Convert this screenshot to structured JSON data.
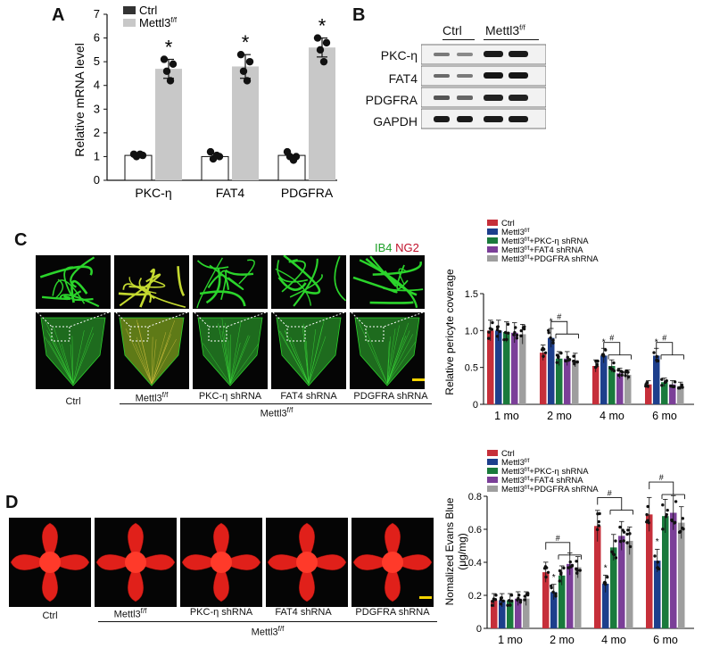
{
  "panels": {
    "A": "A",
    "B": "B",
    "C": "C",
    "D": "D"
  },
  "colors": {
    "ctrl": "#c62f3a",
    "mettl3": "#1d3f8c",
    "pkc": "#1a7a3c",
    "fat4": "#7b3f98",
    "pdgfra": "#9e9e9e",
    "barA_ctrl": "#ffffff",
    "barA_mettl3": "#c8c8c8",
    "vessel": "#2bd42b",
    "evans": "#e0201a"
  },
  "panelA": {
    "ylabel": "Relative mRNA level",
    "legend": [
      {
        "label": "Ctrl",
        "swatch": "#333333"
      },
      {
        "label": "Mettl3",
        "sup": "f/f",
        "swatch": "#c8c8c8"
      }
    ],
    "significance": "*",
    "chart_data": {
      "type": "bar",
      "categories": [
        "PKC-η",
        "FAT4",
        "PDGFRA"
      ],
      "series": [
        {
          "name": "Ctrl",
          "values": [
            1.05,
            1.0,
            1.05
          ],
          "points": [
            [
              1.1,
              1.05,
              1.0,
              1.1
            ],
            [
              1.2,
              1.0,
              0.9,
              1.05
            ],
            [
              1.2,
              1.0,
              1.0,
              0.85
            ]
          ]
        },
        {
          "name": "Mettl3 f/f",
          "values": [
            4.7,
            4.8,
            5.6
          ],
          "points": [
            [
              5.1,
              4.9,
              4.6,
              4.2
            ],
            [
              5.3,
              5.0,
              4.6,
              4.2
            ],
            [
              6.0,
              5.8,
              5.5,
              5.0
            ]
          ],
          "err": [
            0.4,
            0.5,
            0.4
          ]
        }
      ],
      "ylim": [
        0,
        7
      ],
      "yticks": [
        "0",
        "1",
        "2",
        "3",
        "4",
        "5",
        "6",
        "7"
      ]
    }
  },
  "panelB": {
    "groups": [
      {
        "label": "Ctrl"
      },
      {
        "label": "Mettl3",
        "sup": "f/f"
      }
    ],
    "rows": [
      "PKC-η",
      "FAT4",
      "PDGFRA",
      "GAPDH"
    ]
  },
  "panelC": {
    "stain_ib4": "IB4",
    "stain_ng2": "NG2",
    "captions": [
      {
        "label": "Ctrl"
      },
      {
        "label": "Mettl3",
        "sup": "f/f"
      },
      {
        "label": "PKC-η shRNA"
      },
      {
        "label": "FAT4 shRNA"
      },
      {
        "label": "PDGFRA shRNA"
      }
    ],
    "group_label": {
      "label": "Mettl3",
      "sup": "f/f"
    },
    "ylabel": "Relative pericyte coverage",
    "legend": [
      {
        "label": "Ctrl"
      },
      {
        "label": "Mettl3",
        "sup": "f/f"
      },
      {
        "label": "Mettl3",
        "sup": "f/f",
        "suffix": "+PKC-η shRNA"
      },
      {
        "label": "Mettl3",
        "sup": "f/f",
        "suffix": "+FAT4 shRNA"
      },
      {
        "label": "Mettl3",
        "sup": "f/f",
        "suffix": "+PDGFRA shRNA"
      }
    ],
    "marks": {
      "star": "*",
      "hash": "#"
    },
    "chart_data": {
      "type": "bar",
      "categories": [
        "1 mo",
        "2 mo",
        "4 mo",
        "6 mo"
      ],
      "series": [
        {
          "name": "Ctrl",
          "values": [
            1.0,
            0.7,
            0.52,
            0.27
          ]
        },
        {
          "name": "Mettl3 f/f",
          "values": [
            1.0,
            0.9,
            0.66,
            0.66
          ]
        },
        {
          "name": "Mettl3 f/f+PKC-η shRNA",
          "values": [
            0.98,
            0.62,
            0.52,
            0.3
          ]
        },
        {
          "name": "Mettl3 f/f+FAT4 shRNA",
          "values": [
            0.97,
            0.62,
            0.42,
            0.27
          ]
        },
        {
          "name": "Mettl3 f/f+PDGFRA shRNA",
          "values": [
            0.95,
            0.6,
            0.4,
            0.25
          ]
        }
      ],
      "ylim": [
        0,
        1.5
      ],
      "yticks": [
        "0",
        "0.5",
        "1.0",
        "1.5"
      ]
    }
  },
  "panelD": {
    "captions": [
      {
        "label": "Ctrl"
      },
      {
        "label": "Mettl3",
        "sup": "f/f"
      },
      {
        "label": "PKC-η shRNA"
      },
      {
        "label": "FAT4 shRNA"
      },
      {
        "label": "PDGFRA shRNA"
      }
    ],
    "group_label": {
      "label": "Mettl3",
      "sup": "f/f"
    },
    "ylabel": "Nomalized Evans Blue",
    "yunit": "(μg/mg)",
    "legend": [
      {
        "label": "Ctrl"
      },
      {
        "label": "Mettl3",
        "sup": "f/f"
      },
      {
        "label": "Mettl3",
        "sup": "f/f",
        "suffix": "+PKC-η shRNA"
      },
      {
        "label": "Mettl3",
        "sup": "f/f",
        "suffix": "+FAT4 shRNA"
      },
      {
        "label": "Mettl3",
        "sup": "f/f",
        "suffix": "+PDGFRA shRNA"
      }
    ],
    "marks": {
      "star": "*",
      "hash": "#"
    },
    "chart_data": {
      "type": "bar",
      "categories": [
        "1 mo",
        "2 mo",
        "4 mo",
        "6 mo"
      ],
      "series": [
        {
          "name": "Ctrl",
          "values": [
            0.17,
            0.34,
            0.62,
            0.69
          ]
        },
        {
          "name": "Mettl3 f/f",
          "values": [
            0.17,
            0.22,
            0.27,
            0.41
          ]
        },
        {
          "name": "Mettl3 f/f+PKC-η shRNA",
          "values": [
            0.17,
            0.32,
            0.49,
            0.68
          ]
        },
        {
          "name": "Mettl3 f/f+FAT4 shRNA",
          "values": [
            0.18,
            0.39,
            0.56,
            0.7
          ]
        },
        {
          "name": "Mettl3 f/f+PDGFRA shRNA",
          "values": [
            0.18,
            0.37,
            0.53,
            0.64
          ]
        }
      ],
      "ylim": [
        0,
        0.8
      ],
      "yticks": [
        "0",
        "0.2",
        "0.4",
        "0.6",
        "0.8"
      ]
    }
  }
}
